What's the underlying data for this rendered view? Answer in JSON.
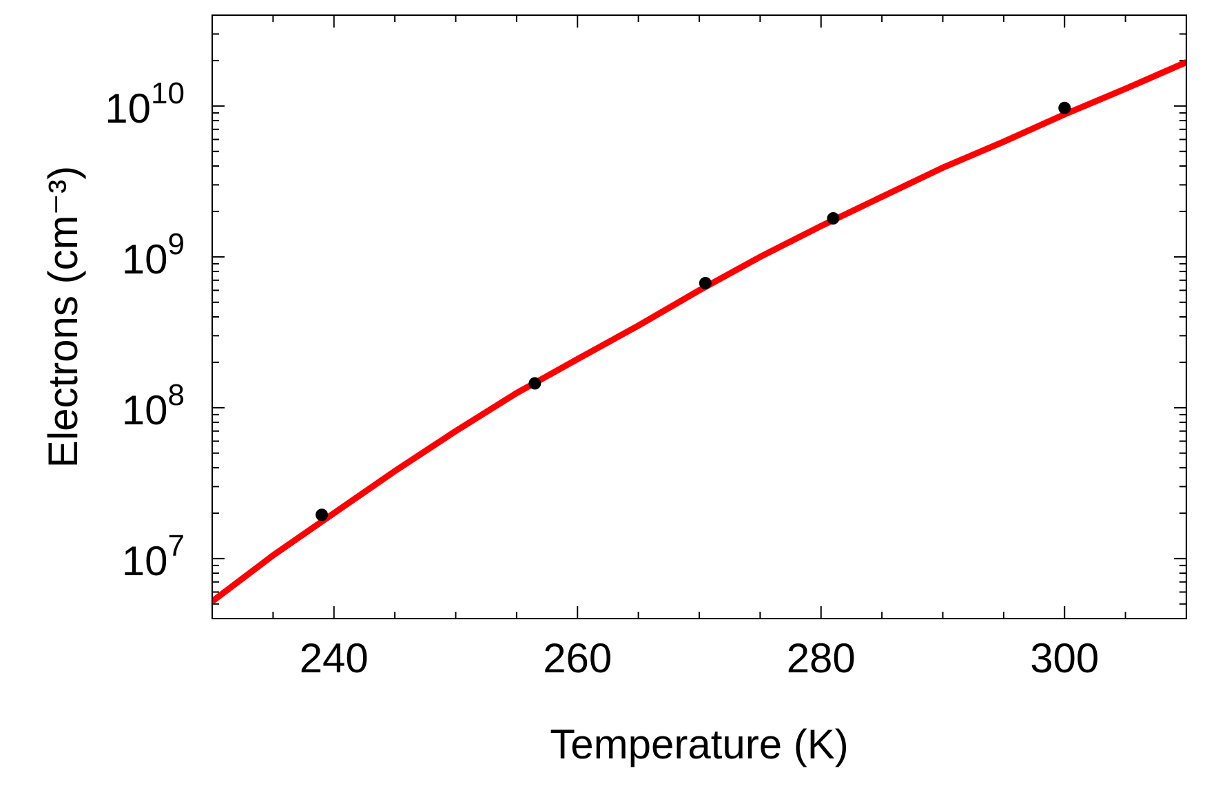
{
  "chart_data": {
    "type": "line",
    "xlabel": "Temperature (K)",
    "ylabel": "Electrons (cm⁻³)",
    "xlim": [
      230,
      310
    ],
    "ylim": [
      4000000.0,
      40000000000.0
    ],
    "yscale": "log",
    "grid": false,
    "x_ticks": [
      240,
      260,
      280,
      300
    ],
    "x_minor_step": 5,
    "y_ticks": [
      {
        "value": 10000000.0,
        "base": "10",
        "exp": "7"
      },
      {
        "value": 100000000.0,
        "base": "10",
        "exp": "8"
      },
      {
        "value": 1000000000.0,
        "base": "10",
        "exp": "9"
      },
      {
        "value": 10000000000.0,
        "base": "10",
        "exp": "10"
      }
    ],
    "series": [
      {
        "kind": "line",
        "color": "#ff0000",
        "x": [
          230,
          235,
          240,
          245,
          250,
          255,
          260,
          265,
          270,
          275,
          280,
          285,
          290,
          295,
          300,
          305,
          310
        ],
        "y": [
          5200000.0,
          10500000.0,
          20000000.0,
          38000000.0,
          70000000.0,
          125000000.0,
          210000000.0,
          350000000.0,
          600000000.0,
          1000000000.0,
          1600000000.0,
          2500000000.0,
          3900000000.0,
          5800000000.0,
          8800000000.0,
          13000000000.0,
          19500000000.0
        ]
      },
      {
        "kind": "scatter",
        "color": "#000000",
        "x": [
          239,
          256.5,
          270.5,
          281,
          300
        ],
        "y": [
          19500000.0,
          145000000.0,
          670000000.0,
          1800000000.0,
          9700000000.0
        ]
      }
    ]
  }
}
